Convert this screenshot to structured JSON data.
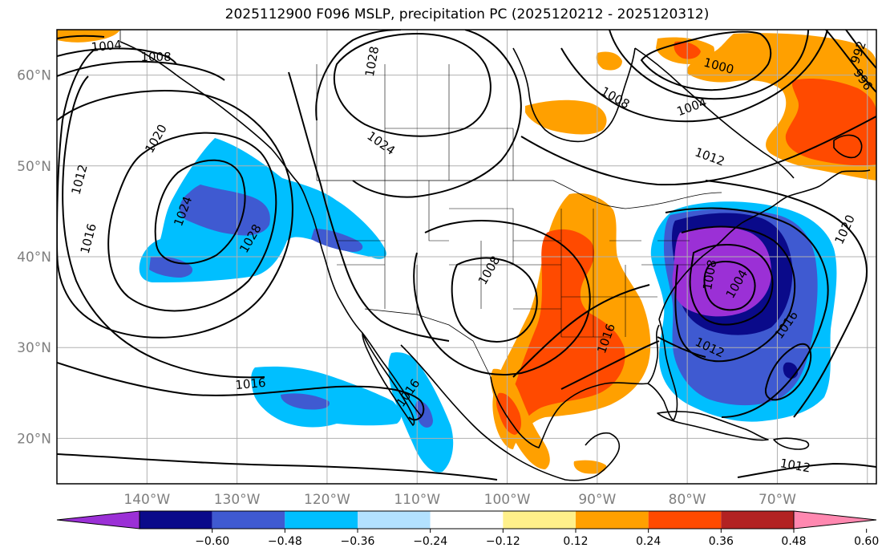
{
  "title": "2025112900 F096 MSLP, precipitation PC (2025120212 - 2025120312)",
  "map": {
    "projection": "plate-carree",
    "lon_range": [
      -150,
      -59
    ],
    "lat_range": [
      15,
      65
    ],
    "lat_labels": [
      {
        "lat": 60,
        "text": "60°N"
      },
      {
        "lat": 50,
        "text": "50°N"
      },
      {
        "lat": 40,
        "text": "40°N"
      },
      {
        "lat": 30,
        "text": "30°N"
      },
      {
        "lat": 20,
        "text": "20°N"
      }
    ],
    "lon_labels": [
      {
        "lon": -140,
        "text": "140°W"
      },
      {
        "lon": -130,
        "text": "130°W"
      },
      {
        "lon": -120,
        "text": "120°W"
      },
      {
        "lon": -110,
        "text": "110°W"
      },
      {
        "lon": -100,
        "text": "100°W"
      },
      {
        "lon": -90,
        "text": "90°W"
      },
      {
        "lon": -80,
        "text": "80°W"
      },
      {
        "lon": -70,
        "text": "70°W"
      }
    ],
    "isobar_labels": [
      {
        "text": "1004",
        "lon": -144.5,
        "lat": 63.2,
        "rot": -5
      },
      {
        "text": "1008",
        "lon": -139.0,
        "lat": 62.0,
        "rot": 0
      },
      {
        "text": "1020",
        "lon": -139.0,
        "lat": 53.0,
        "rot": -60
      },
      {
        "text": "1024",
        "lon": -136.0,
        "lat": 45.0,
        "rot": -70
      },
      {
        "text": "1028",
        "lon": -128.5,
        "lat": 42.0,
        "rot": -60
      },
      {
        "text": "1012",
        "lon": -147.5,
        "lat": 48.5,
        "rot": -75
      },
      {
        "text": "1016",
        "lon": -146.5,
        "lat": 42.0,
        "rot": -75
      },
      {
        "text": "1028",
        "lon": -115.0,
        "lat": 61.5,
        "rot": -80
      },
      {
        "text": "1024",
        "lon": -114.0,
        "lat": 52.5,
        "rot": 35
      },
      {
        "text": "1016",
        "lon": -128.5,
        "lat": 26.0,
        "rot": -5
      },
      {
        "text": "1016",
        "lon": -111.0,
        "lat": 25.0,
        "rot": -55
      },
      {
        "text": "1008",
        "lon": -102.0,
        "lat": 38.5,
        "rot": -60
      },
      {
        "text": "1008",
        "lon": -88.0,
        "lat": 57.5,
        "rot": 30
      },
      {
        "text": "1004",
        "lon": -79.5,
        "lat": 56.5,
        "rot": -20
      },
      {
        "text": "1000",
        "lon": -76.5,
        "lat": 61.0,
        "rot": 15
      },
      {
        "text": "992",
        "lon": -61.0,
        "lat": 62.5,
        "rot": -70
      },
      {
        "text": "996",
        "lon": -60.5,
        "lat": 59.5,
        "rot": 55
      },
      {
        "text": "1012",
        "lon": -77.5,
        "lat": 51.0,
        "rot": 20
      },
      {
        "text": "1020",
        "lon": -62.5,
        "lat": 43.0,
        "rot": -65
      },
      {
        "text": "1016",
        "lon": -89.0,
        "lat": 31.0,
        "rot": -70
      },
      {
        "text": "1008",
        "lon": -77.5,
        "lat": 38.0,
        "rot": -80
      },
      {
        "text": "1004",
        "lon": -74.5,
        "lat": 37.0,
        "rot": -60
      },
      {
        "text": "1012",
        "lon": -77.5,
        "lat": 30.0,
        "rot": 25
      },
      {
        "text": "1016",
        "lon": -69.0,
        "lat": 32.5,
        "rot": -55
      },
      {
        "text": "1012",
        "lon": -68.0,
        "lat": 17.0,
        "rot": 10
      }
    ],
    "colors": {
      "frame": "#000000",
      "grid": "#b0b0b0",
      "coast": "#000000",
      "isobar": "#000000"
    }
  },
  "colorbar": {
    "ticks": [
      "−0.60",
      "−0.48",
      "−0.36",
      "−0.24",
      "−0.12",
      "0.12",
      "0.24",
      "0.36",
      "0.48",
      "0.60"
    ],
    "bins": [
      {
        "color": "#9b30d6"
      },
      {
        "color": "#0a0a8a"
      },
      {
        "color": "#3f5ad1"
      },
      {
        "color": "#00bfff"
      },
      {
        "color": "#b3e1ff"
      },
      {
        "color": "#ffffff"
      },
      {
        "color": "#fff08a"
      },
      {
        "color": "#ffa000"
      },
      {
        "color": "#ff4a00"
      },
      {
        "color": "#b22222"
      },
      {
        "color": "#ff88b0"
      }
    ]
  }
}
